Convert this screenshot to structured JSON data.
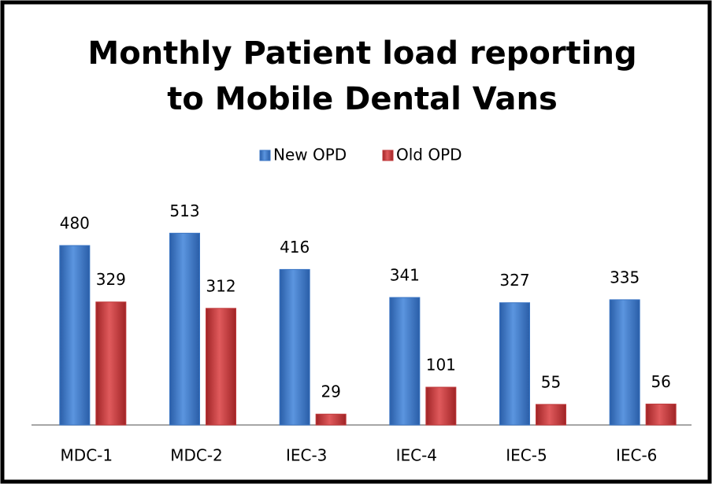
{
  "chart_data": {
    "type": "bar",
    "title_lines": [
      "Monthly Patient load reporting",
      "to Mobile Dental Vans"
    ],
    "categories": [
      "MDC-1",
      "MDC-2",
      "IEC-3",
      "IEC-4",
      "IEC-5",
      "IEC-6"
    ],
    "series": [
      {
        "name": "New OPD",
        "color": "#3a75c4",
        "values": [
          480,
          513,
          416,
          341,
          327,
          335
        ]
      },
      {
        "name": "Old OPD",
        "color": "#c0393b",
        "values": [
          329,
          312,
          29,
          101,
          55,
          56
        ]
      }
    ],
    "legend": "top"
  }
}
